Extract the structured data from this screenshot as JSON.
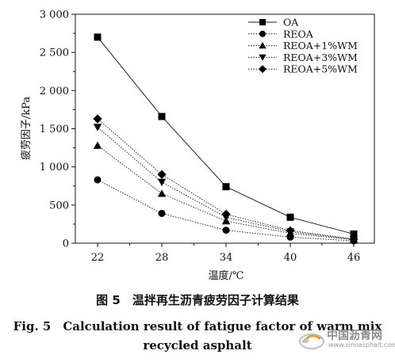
{
  "chart_data": {
    "type": "line",
    "title": "",
    "xlabel": "温度/℃",
    "ylabel": "疲劳因子/kPa",
    "categories": [
      "22",
      "28",
      "34",
      "40",
      "46"
    ],
    "ylim": [
      0,
      3000
    ],
    "yticks": [
      0,
      500,
      1000,
      1500,
      2000,
      2500,
      3000
    ],
    "ytick_labels": [
      "0",
      "500",
      "1 000",
      "1 500",
      "2 000",
      "2 500",
      "3 000"
    ],
    "grid": false,
    "legend_position": "top-right",
    "series": [
      {
        "name": "OA",
        "marker": "square",
        "line": "solid",
        "values": [
          2700,
          1660,
          740,
          340,
          120
        ]
      },
      {
        "name": "REOA",
        "marker": "circle",
        "line": "dotted",
        "values": [
          830,
          390,
          170,
          80,
          30
        ]
      },
      {
        "name": "REOA+1%WM",
        "marker": "triangle-up",
        "line": "dotted",
        "values": [
          1280,
          650,
          290,
          130,
          45
        ]
      },
      {
        "name": "REOA+3%WM",
        "marker": "triangle-down",
        "line": "dotted",
        "values": [
          1520,
          800,
          340,
          150,
          50
        ]
      },
      {
        "name": "REOA+5%WM",
        "marker": "diamond",
        "line": "dotted",
        "values": [
          1630,
          900,
          380,
          165,
          55
        ]
      }
    ]
  },
  "caption": {
    "cn": "图 5　温拌再生沥青疲劳因子计算结果",
    "en_line1": "Fig. 5　Calculation result of fatigue factor of warm mix",
    "en_line2": "recycled asphalt"
  },
  "watermark": {
    "name": "中国沥青网",
    "url": "www.sinoasphalt.com"
  }
}
